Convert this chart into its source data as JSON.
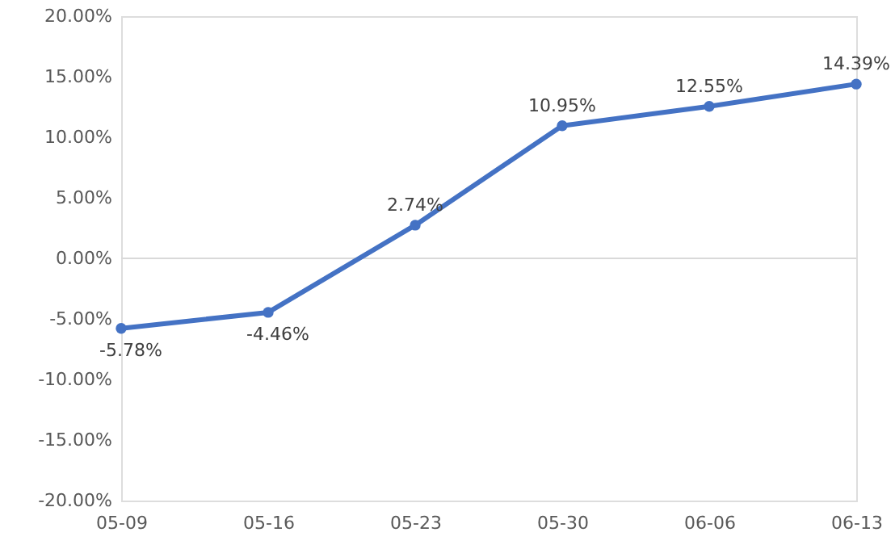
{
  "chart_data": {
    "type": "line",
    "categories": [
      "05-09",
      "05-16",
      "05-23",
      "05-30",
      "06-06",
      "06-13"
    ],
    "series": [
      {
        "color": "#4472c4",
        "values": [
          -5.78,
          -4.46,
          2.74,
          10.95,
          12.55,
          14.39
        ],
        "value_labels": [
          "-5.78%",
          "-4.46%",
          "2.74%",
          "10.95%",
          "12.55%",
          "14.39%"
        ]
      }
    ],
    "ylim": [
      -20,
      20
    ],
    "yticks": [
      {
        "value": -20,
        "label": "-20.00%"
      },
      {
        "value": -15,
        "label": "-15.00%"
      },
      {
        "value": -10,
        "label": "-10.00%"
      },
      {
        "value": -5,
        "label": "-5.00%"
      },
      {
        "value": 0,
        "label": "0.00%"
      },
      {
        "value": 5,
        "label": "5.00%"
      },
      {
        "value": 10,
        "label": "10.00%"
      },
      {
        "value": 15,
        "label": "15.00%"
      },
      {
        "value": 20,
        "label": "20.00%"
      }
    ],
    "ref_lines": [
      {
        "axis": "y",
        "value": 0,
        "color": "#d9d9d9"
      }
    ],
    "grid": false,
    "marker": "circle",
    "line_style": "solid"
  }
}
